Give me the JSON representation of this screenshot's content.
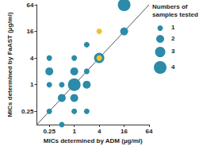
{
  "chart_data": {
    "type": "scatter",
    "x_label": "MICs determined by ADM (µg/ml)",
    "y_label": "MICs determined by FaAST (µg/ml)",
    "log": true,
    "grid": false,
    "xlim": [
      0.125,
      64
    ],
    "ylim": [
      0.125,
      64
    ],
    "xticks": [
      0.25,
      1,
      4,
      16,
      64
    ],
    "yticks": [
      0.25,
      1,
      4,
      16,
      64
    ],
    "x": [
      16,
      16,
      4,
      4,
      4,
      0.25,
      1,
      2,
      0.25,
      1,
      2,
      0.5,
      1,
      2,
      0.25,
      0.5,
      1,
      0.25,
      1,
      2,
      0.5
    ],
    "y": [
      64,
      16,
      16,
      4,
      4,
      4,
      4,
      8,
      2,
      2,
      2,
      1,
      1,
      1,
      1,
      0.5,
      0.5,
      0.25,
      0.25,
      0.25,
      0.125
    ],
    "sizes": [
      4,
      2,
      1,
      3,
      1,
      1,
      1,
      1,
      2,
      2,
      1,
      1,
      4,
      2,
      1,
      2,
      2,
      1,
      1,
      1,
      1
    ],
    "colors": [
      "#2b8ba8",
      "#2b8ba8",
      "#f2c12e",
      "#2b8ba8",
      "#f2c12e",
      "#2b8ba8",
      "#2b8ba8",
      "#2b8ba8",
      "#2b8ba8",
      "#2b8ba8",
      "#2b8ba8",
      "#2b8ba8",
      "#2b8ba8",
      "#2b8ba8",
      "#2b8ba8",
      "#2b8ba8",
      "#2b8ba8",
      "#2b8ba8",
      "#2b8ba8",
      "#2b8ba8",
      "#2b8ba8"
    ],
    "diagonal": {
      "x": [
        0.125,
        64
      ],
      "y": [
        0.125,
        64
      ],
      "color": "#555555"
    },
    "size_legend": {
      "title": [
        "Numbers of",
        "samples tested"
      ],
      "values": [
        1,
        2,
        3,
        4
      ],
      "color": "#2b8ba8"
    }
  }
}
